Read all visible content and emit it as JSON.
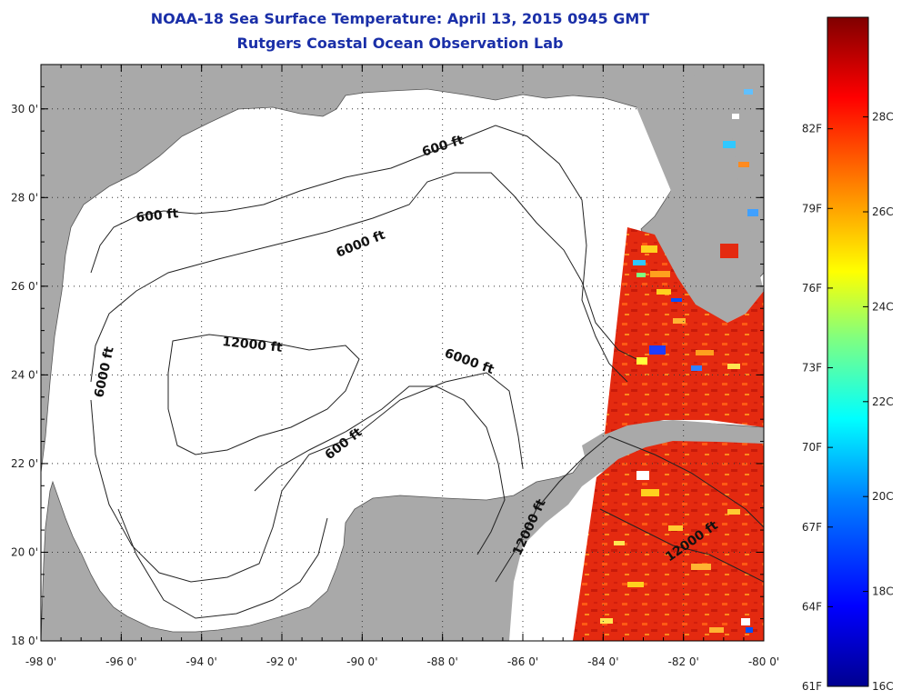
{
  "title": {
    "line1": "NOAA-18 Sea Surface Temperature:  April 13, 2015 0945 GMT",
    "line2": "Rutgers Coastal Ocean Observation Lab"
  },
  "axes": {
    "x_ticks": [
      "-98 0'",
      "-96 0'",
      "-94 0'",
      "-92 0'",
      "-90 0'",
      "-88 0'",
      "-86 0'",
      "-84 0'",
      "-82 0'",
      "-80 0'"
    ],
    "y_ticks": [
      "30 0'",
      "28 0'",
      "26 0'",
      "24 0'",
      "22 0'",
      "20 0'",
      "18 0'"
    ],
    "lon_range": [
      -98,
      -80
    ],
    "lat_range": [
      18,
      31
    ]
  },
  "contour_labels": [
    {
      "text": "600 ft"
    },
    {
      "text": "600 ft"
    },
    {
      "text": "600 ft"
    },
    {
      "text": "6000 ft"
    },
    {
      "text": "6000 ft"
    },
    {
      "text": "6000 ft"
    },
    {
      "text": "12000 ft"
    },
    {
      "text": "12000 ft"
    },
    {
      "text": "12000 ft"
    }
  ],
  "colorbar": {
    "fahrenheit_labels": [
      "82F",
      "79F",
      "76F",
      "73F",
      "70F",
      "67F",
      "64F",
      "61F"
    ],
    "celsius_labels": [
      "28C",
      "26C",
      "24C",
      "22C",
      "20C",
      "18C",
      "16C"
    ],
    "stops": [
      "#000090",
      "#0000ff",
      "#0080ff",
      "#00ffff",
      "#80ff80",
      "#ffff00",
      "#ff8000",
      "#ff0000",
      "#800000"
    ]
  },
  "colors": {
    "land": "#a9a9a9",
    "water_no_data": "#ffffff",
    "sst_warm": "#e8260c",
    "title": "#1a2fa8"
  }
}
